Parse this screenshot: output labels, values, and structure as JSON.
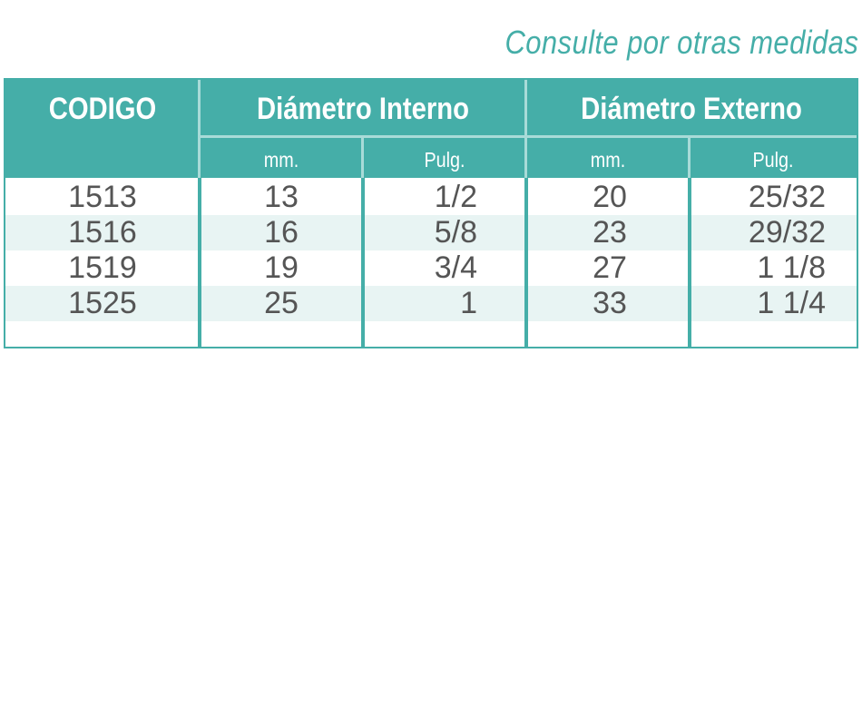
{
  "note": "Consulte por otras medidas",
  "colors": {
    "accent": "#45aea8",
    "header_text": "#ffffff",
    "row_alt": "#e8f4f3",
    "cell_text": "#555555"
  },
  "header": {
    "codigo": "CODIGO",
    "diametro_interno": "Diámetro Interno",
    "diametro_externo": "Diámetro Externo",
    "sub": {
      "interno_mm": "mm.",
      "interno_pulg": "Pulg.",
      "externo_mm": "mm.",
      "externo_pulg": "Pulg."
    }
  },
  "rows": [
    {
      "codigo": "1513",
      "int_mm": "13",
      "int_pulg": "1/2",
      "ext_mm": "20",
      "ext_pulg": "25/32"
    },
    {
      "codigo": "1516",
      "int_mm": "16",
      "int_pulg": "5/8",
      "ext_mm": "23",
      "ext_pulg": "29/32"
    },
    {
      "codigo": "1519",
      "int_mm": "19",
      "int_pulg": "3/4",
      "ext_mm": "27",
      "ext_pulg": "1 1/8"
    },
    {
      "codigo": "1525",
      "int_mm": "25",
      "int_pulg": "1",
      "ext_mm": "33",
      "ext_pulg": "1 1/4"
    }
  ]
}
